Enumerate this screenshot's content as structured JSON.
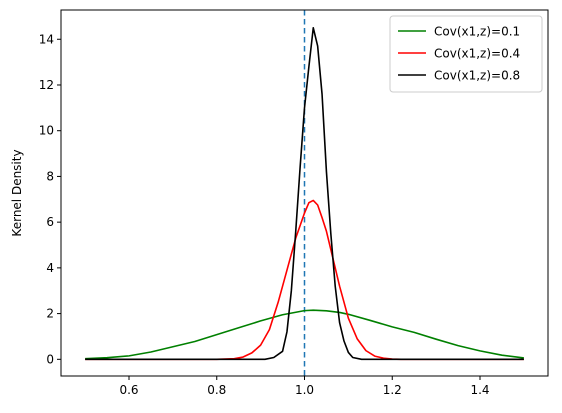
{
  "chart_data": {
    "type": "line",
    "title": "",
    "xlabel": "",
    "ylabel": "Kernel Density",
    "xlim": [
      0.445,
      1.555
    ],
    "ylim": [
      -0.73,
      15.28
    ],
    "xticks": [
      0.6,
      0.8,
      1.0,
      1.2,
      1.4
    ],
    "xtick_labels": [
      "0.6",
      "0.8",
      "1.0",
      "1.2",
      "1.4"
    ],
    "yticks": [
      0,
      2,
      4,
      6,
      8,
      10,
      12,
      14
    ],
    "ytick_labels": [
      "0",
      "2",
      "4",
      "6",
      "8",
      "10",
      "12",
      "14"
    ],
    "grid": false,
    "legend_position": "top-right",
    "reference_line": {
      "x": 1.0,
      "style": "dashed",
      "color": "#1f77b4"
    },
    "series": [
      {
        "name": "Cov(x1,z)=0.1",
        "color": "#008000",
        "x": [
          0.5,
          0.55,
          0.6,
          0.65,
          0.7,
          0.75,
          0.8,
          0.85,
          0.9,
          0.95,
          1.0,
          1.02,
          1.05,
          1.08,
          1.1,
          1.15,
          1.2,
          1.25,
          1.3,
          1.35,
          1.4,
          1.45,
          1.5
        ],
        "y": [
          0.03,
          0.07,
          0.15,
          0.32,
          0.55,
          0.78,
          1.08,
          1.38,
          1.68,
          1.95,
          2.13,
          2.15,
          2.12,
          2.05,
          1.97,
          1.7,
          1.42,
          1.18,
          0.88,
          0.6,
          0.37,
          0.18,
          0.06
        ]
      },
      {
        "name": "Cov(x1,z)=0.4",
        "color": "#ff0000",
        "x": [
          0.5,
          0.8,
          0.84,
          0.86,
          0.88,
          0.9,
          0.92,
          0.94,
          0.96,
          0.98,
          1.0,
          1.01,
          1.02,
          1.03,
          1.04,
          1.05,
          1.06,
          1.08,
          1.1,
          1.12,
          1.14,
          1.16,
          1.18,
          1.2,
          1.22,
          1.5
        ],
        "y": [
          0.0,
          0.0,
          0.03,
          0.1,
          0.28,
          0.62,
          1.3,
          2.5,
          3.9,
          5.3,
          6.4,
          6.85,
          6.95,
          6.75,
          6.2,
          5.6,
          4.8,
          3.2,
          1.8,
          0.9,
          0.38,
          0.14,
          0.05,
          0.01,
          0.0,
          0.0
        ]
      },
      {
        "name": "Cov(x1,z)=0.8",
        "color": "#000000",
        "x": [
          0.5,
          0.91,
          0.93,
          0.95,
          0.96,
          0.97,
          0.98,
          0.99,
          1.0,
          1.01,
          1.02,
          1.03,
          1.04,
          1.05,
          1.06,
          1.07,
          1.08,
          1.09,
          1.1,
          1.11,
          1.13,
          1.5
        ],
        "y": [
          0.0,
          0.0,
          0.08,
          0.35,
          1.2,
          3.0,
          5.6,
          8.4,
          11.0,
          12.8,
          14.5,
          13.7,
          11.6,
          8.2,
          5.5,
          3.2,
          1.6,
          0.8,
          0.3,
          0.08,
          0.0,
          0.0
        ]
      }
    ]
  }
}
